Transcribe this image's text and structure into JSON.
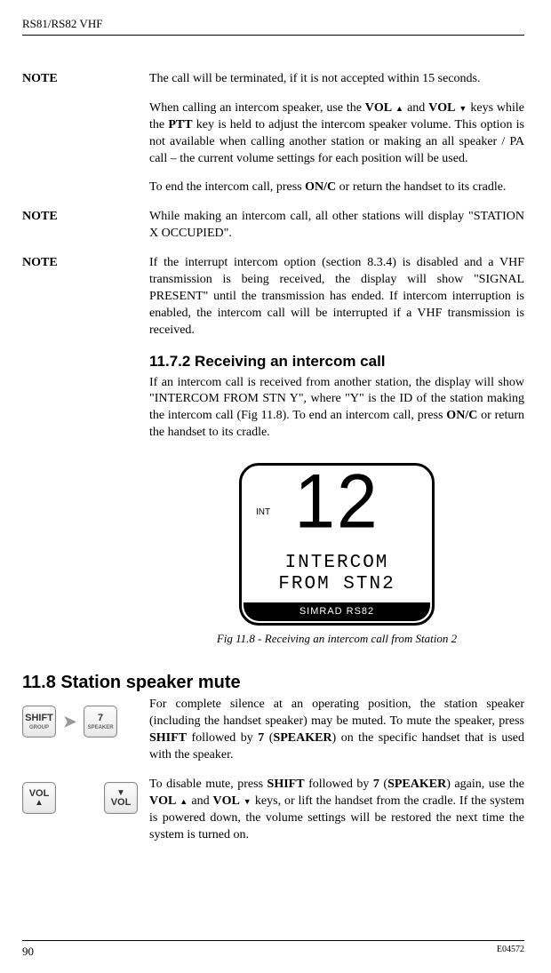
{
  "header": "RS81/RS82 VHF",
  "blocks": [
    {
      "label": "NOTE",
      "text": "The call will be terminated, if it is not accepted within 15 seconds."
    },
    {
      "label": "",
      "html": "When calling an intercom speaker, use the <b>V<span class='sc'>OL</span></b> <span class='tri-up'></span> and <b>V<span class='sc'>OL</span></b> <span class='tri-down'></span> keys while the <b>PTT</b> key is held to adjust the intercom speaker volume. This option is not available when calling another station or making an all speaker / PA call – the current volume settings for each position will be used."
    },
    {
      "label": "",
      "html": "To end the intercom call, press <b>O<span class='sc'>N</span>/C</b> or return the handset to its cradle."
    },
    {
      "label": "NOTE",
      "text": "While making an intercom call, all other stations will display \"STATION X OCCUPIED\"."
    },
    {
      "label": "NOTE",
      "text": "If the interrupt intercom option (section 8.3.4) is disabled and a VHF transmission is being received, the display will show \"SIGNAL PRESENT\" until the transmission has ended. If intercom interruption is enabled, the intercom call will be interrupted if a VHF transmission is received."
    }
  ],
  "sub1": {
    "title": "11.7.2  Receiving an intercom call",
    "html": "If an intercom call is received from another station, the display will show \"INTERCOM FROM STN Y\", where \"Y\" is the ID of the station making the intercom call (Fig 11.8). To end an intercom call, press <b>O<span class='sc'>N</span>/C</b> or return the handset to its cradle."
  },
  "figure": {
    "int": "INT",
    "big": "12",
    "line1": "INTERCOM",
    "line2": "FROM STN2",
    "brand": "SIMRAD RS82",
    "caption": "Fig 11.8 - Receiving an intercom call from Station 2"
  },
  "sec8": {
    "title": "11.8  Station speaker mute",
    "p1": "For complete silence at an operating position, the station speaker (including the handset speaker) may be muted. To mute the speaker, press <b>S<span class='sc'>HIFT</span></b> followed by <b>7</b> (<b>S<span class='sc'>PEAKER</span></b>) on the specific handset that is used with the speaker.",
    "p2": "To disable mute, press <b>S<span class='sc'>HIFT</span></b> followed by <b>7</b> (<b>S<span class='sc'>PEAKER</span></b>) again, use the <b>V<span class='sc'>OL</span></b> <span class='tri-up'></span> and <b>V<span class='sc'>OL</span></b> <span class='tri-down'></span> keys, or lift the handset from the cradle. If the system is powered down, the volume settings will be restored the next time the system is turned on."
  },
  "keys": {
    "shift": {
      "main": "SHIFT",
      "sub": "GROUP"
    },
    "seven": {
      "main": "7",
      "sub": "SPEAKER"
    },
    "vol": "VOL"
  },
  "footer": {
    "page": "90",
    "code": "E04572"
  }
}
